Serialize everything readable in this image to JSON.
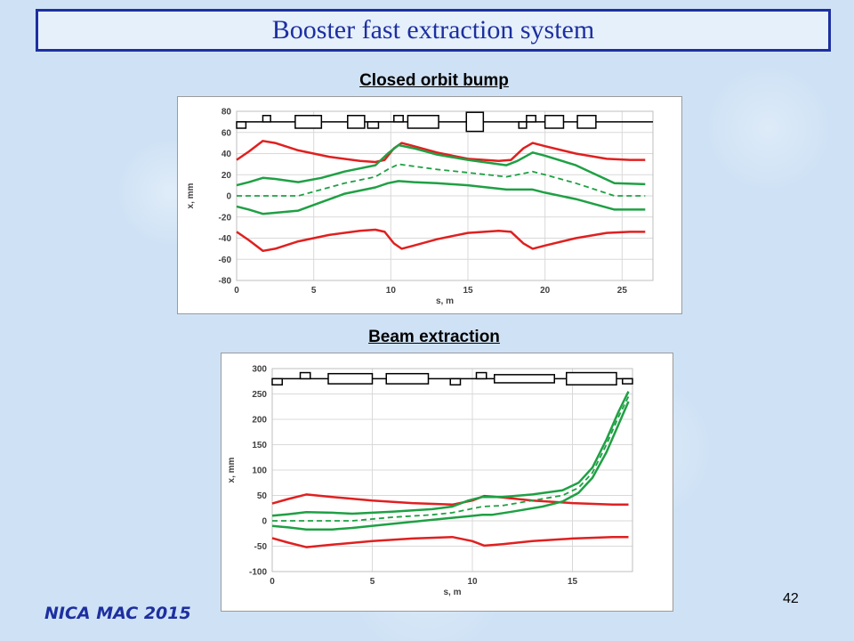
{
  "slide": {
    "title": "Booster fast extraction system",
    "footer": "NICA MAC 2015",
    "page_number": "42"
  },
  "colors": {
    "title": "#1d2fa0",
    "red_envelope": "#e02020",
    "green_envelope": "#1fa044",
    "magnet_outline": "#000000"
  },
  "chart_data": [
    {
      "type": "line",
      "heading": "Closed orbit bump",
      "xlabel": "s, m",
      "ylabel": "x, mm",
      "xlim": [
        0,
        27
      ],
      "ylim": [
        -80,
        80
      ],
      "xticks": [
        "0",
        "5",
        "10",
        "15",
        "20",
        "25"
      ],
      "xtick_values": [
        0,
        5,
        10,
        15,
        20,
        25
      ],
      "yticks": [
        "80",
        "60",
        "40",
        "20",
        "0",
        "-20",
        "-40",
        "-60",
        "-80"
      ],
      "ytick_values": [
        80,
        60,
        40,
        20,
        0,
        -20,
        -40,
        -60,
        -80
      ],
      "grid": true,
      "legend": "none",
      "lattice_line_y": 70,
      "magnets": [
        {
          "s0": 0.0,
          "s1": 0.6,
          "side": "below",
          "height": 6
        },
        {
          "s0": 1.7,
          "s1": 2.2,
          "side": "above",
          "height": 6
        },
        {
          "s0": 3.8,
          "s1": 5.5,
          "side": "both",
          "height": 6
        },
        {
          "s0": 7.2,
          "s1": 8.3,
          "side": "both",
          "height": 6
        },
        {
          "s0": 8.5,
          "s1": 9.2,
          "side": "below",
          "height": 6
        },
        {
          "s0": 10.2,
          "s1": 10.8,
          "side": "above",
          "height": 6
        },
        {
          "s0": 11.1,
          "s1": 13.1,
          "side": "both",
          "height": 6
        },
        {
          "s0": 14.9,
          "s1": 16.0,
          "side": "both",
          "height": 9
        },
        {
          "s0": 18.3,
          "s1": 18.8,
          "side": "below",
          "height": 6
        },
        {
          "s0": 18.8,
          "s1": 19.4,
          "side": "above",
          "height": 6
        },
        {
          "s0": 20.0,
          "s1": 21.2,
          "side": "both",
          "height": 6
        },
        {
          "s0": 22.1,
          "s1": 23.3,
          "side": "both",
          "height": 6
        }
      ],
      "series": [
        {
          "color": "red",
          "dash": false,
          "x": [
            0,
            0.8,
            1.7,
            2.5,
            4,
            6,
            8,
            9,
            9.6,
            10.2,
            10.7,
            11.5,
            13,
            15,
            17,
            17.8,
            18.6,
            19.2,
            20,
            22,
            24,
            25.5,
            26.5
          ],
          "y": [
            34,
            42,
            52,
            50,
            43,
            37,
            33,
            32,
            34,
            45,
            50,
            47,
            41,
            35,
            33,
            34,
            45,
            50,
            47,
            40,
            35,
            34,
            34
          ]
        },
        {
          "color": "red",
          "dash": false,
          "x": [
            0,
            0.8,
            1.7,
            2.5,
            4,
            6,
            8,
            9,
            9.6,
            10.2,
            10.7,
            11.5,
            13,
            15,
            17,
            17.8,
            18.6,
            19.2,
            20,
            22,
            24,
            25.5,
            26.5
          ],
          "y": [
            -34,
            -42,
            -52,
            -50,
            -43,
            -37,
            -33,
            -32,
            -34,
            -45,
            -50,
            -47,
            -41,
            -35,
            -33,
            -34,
            -45,
            -50,
            -47,
            -40,
            -35,
            -34,
            -34
          ]
        },
        {
          "color": "green",
          "dash": false,
          "x": [
            0,
            0.8,
            1.7,
            2.5,
            4,
            5.5,
            7,
            9,
            9.8,
            10.5,
            11.5,
            13,
            15,
            17.5,
            18.2,
            19.2,
            20,
            22,
            24.5,
            26.5
          ],
          "y": [
            10,
            13,
            17,
            16,
            13,
            17,
            23,
            29,
            40,
            48,
            45,
            39,
            34,
            29,
            33,
            41,
            38,
            29,
            12,
            11
          ]
        },
        {
          "color": "green",
          "dash": false,
          "x": [
            0,
            0.8,
            1.7,
            2.5,
            4,
            5.5,
            7,
            9,
            9.8,
            10.5,
            11.5,
            13,
            15,
            17.5,
            18.2,
            19.2,
            20,
            22,
            24.5,
            26.5
          ],
          "y": [
            -10,
            -13,
            -17,
            -16,
            -14,
            -6,
            2,
            8,
            12,
            14,
            13,
            12,
            10,
            6,
            6,
            6,
            3,
            -3,
            -13,
            -13
          ]
        },
        {
          "color": "green",
          "dash": true,
          "x": [
            0,
            2,
            4,
            5.5,
            7,
            9,
            9.8,
            10.5,
            11.5,
            13,
            15,
            17.5,
            18.2,
            19.2,
            20,
            22,
            24.5,
            26.5
          ],
          "y": [
            0,
            0,
            0,
            6,
            12,
            18,
            25,
            30,
            28,
            25,
            22,
            18,
            20,
            23,
            20,
            12,
            0,
            0
          ]
        }
      ]
    },
    {
      "type": "line",
      "heading": "Beam extraction",
      "xlabel": "s, m",
      "ylabel": "x, mm",
      "xlim": [
        0,
        18
      ],
      "ylim": [
        -100,
        300
      ],
      "xticks": [
        "0",
        "5",
        "10",
        "15"
      ],
      "xtick_values": [
        0,
        5,
        10,
        15
      ],
      "yticks": [
        "300",
        "250",
        "200",
        "150",
        "100",
        "50",
        "0",
        "-50",
        "-100"
      ],
      "ytick_values": [
        300,
        250,
        200,
        150,
        100,
        50,
        0,
        -50,
        -100
      ],
      "grid": true,
      "legend": "none",
      "lattice_line_y": 280,
      "magnets": [
        {
          "s0": 0.0,
          "s1": 0.5,
          "side": "below",
          "height": 12
        },
        {
          "s0": 1.4,
          "s1": 1.9,
          "side": "above",
          "height": 12
        },
        {
          "s0": 2.8,
          "s1": 5.0,
          "side": "both",
          "height": 10
        },
        {
          "s0": 5.7,
          "s1": 7.8,
          "side": "both",
          "height": 10
        },
        {
          "s0": 8.9,
          "s1": 9.4,
          "side": "below",
          "height": 12
        },
        {
          "s0": 10.2,
          "s1": 10.7,
          "side": "above",
          "height": 12
        },
        {
          "s0": 11.1,
          "s1": 14.1,
          "side": "both",
          "height": 8
        },
        {
          "s0": 14.7,
          "s1": 17.2,
          "side": "both",
          "height": 12
        },
        {
          "s0": 17.5,
          "s1": 18.0,
          "side": "below",
          "height": 10
        }
      ],
      "series": [
        {
          "color": "red",
          "dash": false,
          "x": [
            0,
            0.8,
            1.7,
            3,
            5,
            7,
            9,
            10,
            10.6,
            11.5,
            13,
            15,
            17,
            17.8
          ],
          "y": [
            34,
            43,
            52,
            47,
            40,
            35,
            32,
            40,
            49,
            46,
            40,
            35,
            32,
            32
          ]
        },
        {
          "color": "red",
          "dash": false,
          "x": [
            0,
            0.8,
            1.7,
            3,
            5,
            7,
            9,
            10,
            10.6,
            11.5,
            13,
            15,
            17,
            17.8
          ],
          "y": [
            -34,
            -43,
            -52,
            -47,
            -40,
            -35,
            -32,
            -40,
            -49,
            -46,
            -40,
            -35,
            -32,
            -32
          ]
        },
        {
          "color": "green",
          "dash": false,
          "x": [
            0,
            0.8,
            1.7,
            3,
            4,
            6,
            8,
            9,
            9.8,
            10.5,
            11.5,
            13,
            14.5,
            15.3,
            16,
            16.7,
            17.3,
            17.8
          ],
          "y": [
            10,
            13,
            17,
            16,
            14,
            18,
            23,
            28,
            40,
            47,
            47,
            52,
            60,
            75,
            105,
            160,
            215,
            255
          ]
        },
        {
          "color": "green",
          "dash": false,
          "x": [
            0,
            0.8,
            1.7,
            3,
            4,
            6,
            8,
            9,
            9.8,
            10.5,
            11,
            12,
            13.5,
            14.5,
            15.3,
            16,
            16.7,
            17.3,
            17.8
          ],
          "y": [
            -10,
            -13,
            -17,
            -17,
            -14,
            -6,
            2,
            6,
            9,
            12,
            12,
            18,
            28,
            38,
            55,
            85,
            135,
            190,
            235
          ]
        },
        {
          "color": "green",
          "dash": true,
          "x": [
            0,
            2,
            4,
            6,
            8,
            9,
            10,
            10.5,
            11.5,
            13,
            14.5,
            15.3,
            16,
            16.7,
            17.3,
            17.8
          ],
          "y": [
            0,
            0,
            0,
            7,
            12,
            16,
            24,
            28,
            30,
            40,
            50,
            65,
            95,
            150,
            205,
            245
          ]
        }
      ]
    }
  ]
}
